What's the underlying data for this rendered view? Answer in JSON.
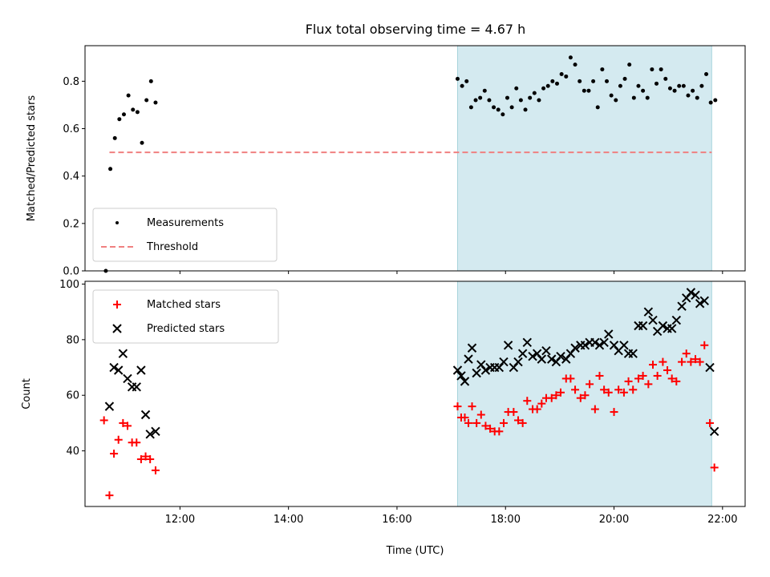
{
  "chart_data": [
    {
      "type": "scatter",
      "title": "Flux total observing time = 4.67 h",
      "xlabel": "",
      "ylabel": "Matched/Predicted stars",
      "xlim": [
        "10:15",
        "22:25"
      ],
      "ylim": [
        0.0,
        0.95
      ],
      "yticks": [
        0.0,
        0.2,
        0.4,
        0.6,
        0.8
      ],
      "yticklabels": [
        "0.0",
        "0.2",
        "0.4",
        "0.6",
        "0.8"
      ],
      "shaded_interval": [
        "17:07",
        "21:48"
      ],
      "shade_color": "#d4eaf0",
      "legend_position": "lower left",
      "threshold": {
        "name": "Threshold",
        "value": 0.5,
        "x_range": [
          "10:42",
          "21:48"
        ],
        "color": "#f08080"
      },
      "series": [
        {
          "name": "Measurements",
          "color": "#000000",
          "marker": "dot",
          "points": [
            [
              "10:38",
              0.0
            ],
            [
              "10:43",
              0.43
            ],
            [
              "10:48",
              0.56
            ],
            [
              "10:53",
              0.64
            ],
            [
              "10:58",
              0.66
            ],
            [
              "11:03",
              0.74
            ],
            [
              "11:08",
              0.68
            ],
            [
              "11:13",
              0.67
            ],
            [
              "11:18",
              0.54
            ],
            [
              "11:23",
              0.72
            ],
            [
              "11:28",
              0.8
            ],
            [
              "11:33",
              0.71
            ],
            [
              "17:07",
              0.81
            ],
            [
              "17:12",
              0.78
            ],
            [
              "17:17",
              0.8
            ],
            [
              "17:22",
              0.69
            ],
            [
              "17:27",
              0.72
            ],
            [
              "17:32",
              0.73
            ],
            [
              "17:37",
              0.76
            ],
            [
              "17:42",
              0.72
            ],
            [
              "17:47",
              0.69
            ],
            [
              "17:52",
              0.68
            ],
            [
              "17:57",
              0.66
            ],
            [
              "18:02",
              0.73
            ],
            [
              "18:07",
              0.69
            ],
            [
              "18:12",
              0.77
            ],
            [
              "18:17",
              0.72
            ],
            [
              "18:22",
              0.68
            ],
            [
              "18:27",
              0.73
            ],
            [
              "18:32",
              0.75
            ],
            [
              "18:37",
              0.72
            ],
            [
              "18:42",
              0.77
            ],
            [
              "18:47",
              0.78
            ],
            [
              "18:52",
              0.8
            ],
            [
              "18:57",
              0.79
            ],
            [
              "19:02",
              0.83
            ],
            [
              "19:07",
              0.82
            ],
            [
              "19:12",
              0.9
            ],
            [
              "19:17",
              0.87
            ],
            [
              "19:22",
              0.8
            ],
            [
              "19:27",
              0.76
            ],
            [
              "19:32",
              0.76
            ],
            [
              "19:37",
              0.8
            ],
            [
              "19:42",
              0.69
            ],
            [
              "19:47",
              0.85
            ],
            [
              "19:52",
              0.8
            ],
            [
              "19:57",
              0.74
            ],
            [
              "20:02",
              0.72
            ],
            [
              "20:07",
              0.78
            ],
            [
              "20:12",
              0.81
            ],
            [
              "20:17",
              0.87
            ],
            [
              "20:22",
              0.73
            ],
            [
              "20:27",
              0.78
            ],
            [
              "20:32",
              0.76
            ],
            [
              "20:37",
              0.73
            ],
            [
              "20:42",
              0.85
            ],
            [
              "20:47",
              0.79
            ],
            [
              "20:52",
              0.85
            ],
            [
              "20:57",
              0.81
            ],
            [
              "21:02",
              0.77
            ],
            [
              "21:07",
              0.76
            ],
            [
              "21:12",
              0.78
            ],
            [
              "21:17",
              0.78
            ],
            [
              "21:22",
              0.74
            ],
            [
              "21:27",
              0.76
            ],
            [
              "21:32",
              0.73
            ],
            [
              "21:37",
              0.78
            ],
            [
              "21:42",
              0.83
            ],
            [
              "21:47",
              0.71
            ],
            [
              "21:52",
              0.72
            ]
          ]
        }
      ]
    },
    {
      "type": "scatter",
      "title": "",
      "xlabel": "Time (UTC)",
      "ylabel": "Count",
      "xlim": [
        "10:15",
        "22:25"
      ],
      "ylim": [
        20,
        101
      ],
      "xticks": [
        "12:00",
        "14:00",
        "16:00",
        "18:00",
        "20:00",
        "22:00"
      ],
      "yticks": [
        40,
        60,
        80,
        100
      ],
      "yticklabels": [
        "40",
        "60",
        "80",
        "100"
      ],
      "shaded_interval": [
        "17:07",
        "21:48"
      ],
      "shade_color": "#d4eaf0",
      "legend_position": "upper left",
      "series": [
        {
          "name": "Matched stars",
          "color": "#ff0000",
          "marker": "plus",
          "points": [
            [
              "10:36",
              51
            ],
            [
              "10:42",
              24
            ],
            [
              "10:47",
              39
            ],
            [
              "10:52",
              44
            ],
            [
              "10:57",
              50
            ],
            [
              "11:02",
              49
            ],
            [
              "11:07",
              43
            ],
            [
              "11:12",
              43
            ],
            [
              "11:17",
              37
            ],
            [
              "11:22",
              38
            ],
            [
              "11:27",
              37
            ],
            [
              "11:33",
              33
            ],
            [
              "17:07",
              56
            ],
            [
              "17:11",
              52
            ],
            [
              "17:15",
              52
            ],
            [
              "17:19",
              50
            ],
            [
              "17:23",
              56
            ],
            [
              "17:28",
              50
            ],
            [
              "17:33",
              53
            ],
            [
              "17:38",
              49
            ],
            [
              "17:43",
              48
            ],
            [
              "17:48",
              47
            ],
            [
              "17:53",
              47
            ],
            [
              "17:58",
              50
            ],
            [
              "18:03",
              54
            ],
            [
              "18:09",
              54
            ],
            [
              "18:14",
              51
            ],
            [
              "18:19",
              50
            ],
            [
              "18:24",
              58
            ],
            [
              "18:30",
              55
            ],
            [
              "18:35",
              55
            ],
            [
              "18:40",
              57
            ],
            [
              "18:45",
              59
            ],
            [
              "18:51",
              59
            ],
            [
              "18:56",
              60
            ],
            [
              "19:01",
              61
            ],
            [
              "19:07",
              66
            ],
            [
              "19:12",
              66
            ],
            [
              "19:17",
              62
            ],
            [
              "19:23",
              59
            ],
            [
              "19:28",
              60
            ],
            [
              "19:33",
              64
            ],
            [
              "19:39",
              55
            ],
            [
              "19:44",
              67
            ],
            [
              "19:49",
              62
            ],
            [
              "19:54",
              61
            ],
            [
              "20:00",
              54
            ],
            [
              "20:05",
              62
            ],
            [
              "20:11",
              61
            ],
            [
              "20:16",
              65
            ],
            [
              "20:21",
              62
            ],
            [
              "20:27",
              66
            ],
            [
              "20:32",
              67
            ],
            [
              "20:38",
              64
            ],
            [
              "20:43",
              71
            ],
            [
              "20:48",
              67
            ],
            [
              "20:54",
              72
            ],
            [
              "20:59",
              69
            ],
            [
              "21:04",
              66
            ],
            [
              "21:09",
              65
            ],
            [
              "21:15",
              72
            ],
            [
              "21:20",
              75
            ],
            [
              "21:25",
              72
            ],
            [
              "21:30",
              73
            ],
            [
              "21:35",
              72
            ],
            [
              "21:40",
              78
            ],
            [
              "21:46",
              50
            ],
            [
              "21:51",
              34
            ]
          ]
        },
        {
          "name": "Predicted stars",
          "color": "#000000",
          "marker": "x",
          "points": [
            [
              "10:42",
              56
            ],
            [
              "10:47",
              70
            ],
            [
              "10:52",
              69
            ],
            [
              "10:57",
              75
            ],
            [
              "11:02",
              66
            ],
            [
              "11:07",
              63
            ],
            [
              "11:12",
              63
            ],
            [
              "11:17",
              69
            ],
            [
              "11:22",
              53
            ],
            [
              "11:27",
              46
            ],
            [
              "11:33",
              47
            ],
            [
              "17:07",
              69
            ],
            [
              "17:11",
              67
            ],
            [
              "17:15",
              65
            ],
            [
              "17:19",
              73
            ],
            [
              "17:23",
              77
            ],
            [
              "17:28",
              68
            ],
            [
              "17:33",
              71
            ],
            [
              "17:38",
              69
            ],
            [
              "17:43",
              70
            ],
            [
              "17:48",
              70
            ],
            [
              "17:53",
              70
            ],
            [
              "17:58",
              72
            ],
            [
              "18:03",
              78
            ],
            [
              "18:09",
              70
            ],
            [
              "18:14",
              72
            ],
            [
              "18:19",
              75
            ],
            [
              "18:24",
              79
            ],
            [
              "18:30",
              74
            ],
            [
              "18:35",
              75
            ],
            [
              "18:40",
              73
            ],
            [
              "18:45",
              76
            ],
            [
              "18:51",
              73
            ],
            [
              "18:56",
              72
            ],
            [
              "19:01",
              74
            ],
            [
              "19:07",
              73
            ],
            [
              "19:12",
              75
            ],
            [
              "19:17",
              77
            ],
            [
              "19:23",
              78
            ],
            [
              "19:28",
              78
            ],
            [
              "19:33",
              79
            ],
            [
              "19:39",
              79
            ],
            [
              "19:44",
              78
            ],
            [
              "19:49",
              79
            ],
            [
              "19:54",
              82
            ],
            [
              "20:00",
              78
            ],
            [
              "20:05",
              76
            ],
            [
              "20:11",
              78
            ],
            [
              "20:16",
              75
            ],
            [
              "20:21",
              75
            ],
            [
              "20:27",
              85
            ],
            [
              "20:32",
              85
            ],
            [
              "20:38",
              90
            ],
            [
              "20:43",
              87
            ],
            [
              "20:48",
              83
            ],
            [
              "20:54",
              85
            ],
            [
              "20:59",
              84
            ],
            [
              "21:04",
              84
            ],
            [
              "21:09",
              87
            ],
            [
              "21:15",
              92
            ],
            [
              "21:20",
              95
            ],
            [
              "21:25",
              97
            ],
            [
              "21:30",
              96
            ],
            [
              "21:35",
              93
            ],
            [
              "21:40",
              94
            ],
            [
              "21:46",
              70
            ],
            [
              "21:51",
              47
            ]
          ]
        }
      ]
    }
  ]
}
